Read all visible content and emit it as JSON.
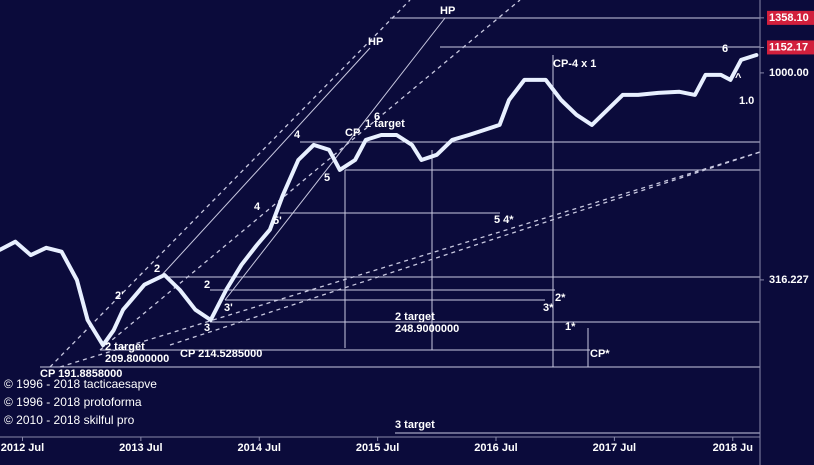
{
  "chart_data": {
    "type": "line",
    "log_scale": true,
    "xlim": [
      2012.31,
      2018.73
    ],
    "xticks": [
      {
        "value": 2012.5,
        "label": "2012 Jul"
      },
      {
        "value": 2013.5,
        "label": "2013 Jul"
      },
      {
        "value": 2014.5,
        "label": "2014 Jul"
      },
      {
        "value": 2015.5,
        "label": "2015 Jul"
      },
      {
        "value": 2016.5,
        "label": "2016 Jul"
      },
      {
        "value": 2017.5,
        "label": "2017 Jul"
      },
      {
        "value": 2018.5,
        "label": "2018 Ju"
      }
    ],
    "ylim": [
      132,
      1500
    ],
    "yticks": [
      {
        "value": 1358.1,
        "label": "1358.10",
        "boxed": true
      },
      {
        "value": 1152.17,
        "label": "1152.17",
        "boxed": true
      },
      {
        "value": 1000,
        "label": "1000.00"
      },
      316.227
    ],
    "box_color": "#d21f3c",
    "series": [
      {
        "color": "#e8f0ff",
        "x": [
          2012.31,
          2012.44,
          2012.57,
          2012.7,
          2012.83,
          2012.96,
          2013.05,
          2013.18,
          2013.27,
          2013.35,
          2013.53,
          2013.7,
          2013.83,
          2013.96,
          2014.09,
          2014.22,
          2014.35,
          2014.48,
          2014.59,
          2014.7,
          2014.83,
          2014.96,
          2015.09,
          2015.18,
          2015.31,
          2015.4,
          2015.53,
          2015.66,
          2015.79,
          2015.87,
          2016.0,
          2016.13,
          2016.27,
          2016.4,
          2016.53,
          2016.61,
          2016.74,
          2016.92,
          2017.05,
          2017.18,
          2017.31,
          2017.44,
          2017.57,
          2017.7,
          2017.87,
          2018.05,
          2018.18,
          2018.27,
          2018.4,
          2018.48,
          2018.57,
          2018.7
        ],
        "values": [
          374,
          391,
          363,
          378,
          370,
          316,
          253,
          220,
          239,
          268,
          308,
          325,
          299,
          268,
          253,
          299,
          344,
          384,
          418,
          507,
          616,
          670,
          652,
          583,
          616,
          689,
          708,
          708,
          670,
          616,
          634,
          689,
          708,
          728,
          749,
          860,
          962,
          962,
          860,
          792,
          749,
          814,
          885,
          885,
          895,
          900,
          885,
          989,
          989,
          962,
          1075,
          1105
        ]
      }
    ],
    "annotations": [
      "HP",
      "HP",
      "CP-4 x 1",
      "6",
      "1 target",
      "6",
      "4",
      "CP",
      "5",
      "4",
      "5'",
      "5 4*",
      "2",
      "2",
      "2'",
      "3'",
      "3",
      "2*",
      "3*",
      "1*",
      "2 target",
      "248.9000000",
      "2 target",
      "209.8000000",
      "CP 214.5285000",
      "CP*",
      "CP 191.8858000",
      "3 target",
      "1.0",
      "^"
    ],
    "copyright": [
      "© 1996 - 2018 tacticaesapve",
      "© 1996 - 2018 protoforma",
      "© 2010 - 2018 skilful pro"
    ]
  }
}
